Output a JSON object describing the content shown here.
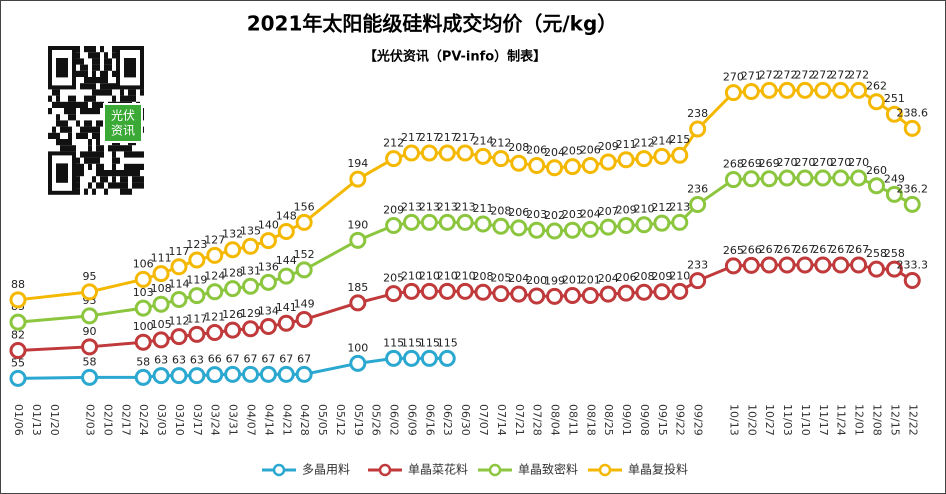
{
  "chart_data": {
    "type": "line",
    "title": "2021年太阳能级硅料成交均价（元/kg）",
    "subtitle": "【光伏资讯（PV-info）制表】",
    "qr_label": [
      "光伏",
      "资讯"
    ],
    "xticks": [
      "01/06",
      "01/13",
      "01/20",
      "02/03",
      "02/10",
      "02/17",
      "02/24",
      "03/03",
      "03/10",
      "03/17",
      "03/24",
      "03/31",
      "04/07",
      "04/14",
      "04/21",
      "04/28",
      "05/05",
      "05/12",
      "05/19",
      "05/26",
      "06/02",
      "06/09",
      "06/16",
      "06/23",
      "06/30",
      "07/07",
      "07/14",
      "07/21",
      "07/28",
      "08/04",
      "08/11",
      "08/18",
      "08/25",
      "09/01",
      "09/08",
      "09/15",
      "09/22",
      "09/29",
      "10/13",
      "10/20",
      "10/27",
      "11/03",
      "11/10",
      "11/17",
      "11/24",
      "12/01",
      "12/08",
      "12/15",
      "12/22"
    ],
    "x": [
      "01/06",
      "02/03",
      "02/24",
      "03/03",
      "03/10",
      "03/17",
      "03/24",
      "03/31",
      "04/07",
      "04/14",
      "04/21",
      "04/28",
      "05/19",
      "06/02",
      "06/09",
      "06/16",
      "06/23",
      "06/30",
      "07/07",
      "07/14",
      "07/21",
      "07/28",
      "08/04",
      "08/11",
      "08/18",
      "08/25",
      "09/01",
      "09/08",
      "09/15",
      "09/22",
      "09/29",
      "10/13",
      "10/20",
      "10/27",
      "11/03",
      "11/10",
      "11/17",
      "11/24",
      "12/01",
      "12/08",
      "12/15",
      "12/22"
    ],
    "legend": "bottom",
    "series": [
      {
        "name": "多晶用料",
        "color": "#2ba8d0",
        "ylim": [
          -10,
          1100
        ],
        "values": [
          55,
          58,
          58,
          63,
          63,
          63,
          66,
          67,
          67,
          67,
          67,
          67,
          100,
          115,
          115,
          115,
          115,
          null,
          null,
          null,
          null,
          null,
          null,
          null,
          null,
          null,
          null,
          null,
          null,
          null,
          null,
          null,
          null,
          null,
          null,
          null,
          null,
          null,
          null,
          null,
          null,
          null
        ]
      },
      {
        "name": "单晶菜花料",
        "color": "#c0393b",
        "ylim": [
          -25,
          775
        ],
        "values": [
          82,
          90,
          100,
          105,
          112,
          117,
          121,
          126,
          129,
          134,
          141,
          149,
          185,
          205,
          210,
          210,
          210,
          210,
          208,
          205,
          204,
          200,
          199,
          201,
          201,
          204,
          206,
          208,
          209,
          210,
          233,
          265,
          266,
          267,
          267,
          267,
          267,
          267,
          267,
          258,
          258,
          233.3
        ]
      },
      {
        "name": "单晶致密料",
        "color": "#8cc63f",
        "ylim": [
          -15,
          460
        ],
        "values": [
          85,
          93,
          103,
          108,
          114,
          119,
          124,
          128,
          131,
          136,
          144,
          152,
          190,
          209,
          213,
          213,
          213,
          213,
          211,
          208,
          206,
          203,
          202,
          203,
          204,
          207,
          209,
          210,
          212,
          213,
          236,
          268,
          269,
          269,
          270,
          270,
          270,
          270,
          270,
          260,
          249,
          236.2
        ]
      },
      {
        "name": "单晶复投料",
        "color": "#f5b800",
        "ylim": [
          0,
          325
        ],
        "values": [
          88,
          95,
          106,
          111,
          117,
          123,
          127,
          132,
          135,
          140,
          148,
          156,
          194,
          212,
          217,
          217,
          217,
          217,
          214,
          212,
          208,
          206,
          204,
          205,
          206,
          209,
          211,
          212,
          214,
          215,
          238,
          270,
          271,
          272,
          272,
          272,
          272,
          272,
          272,
          262,
          251,
          238.6
        ]
      }
    ]
  }
}
